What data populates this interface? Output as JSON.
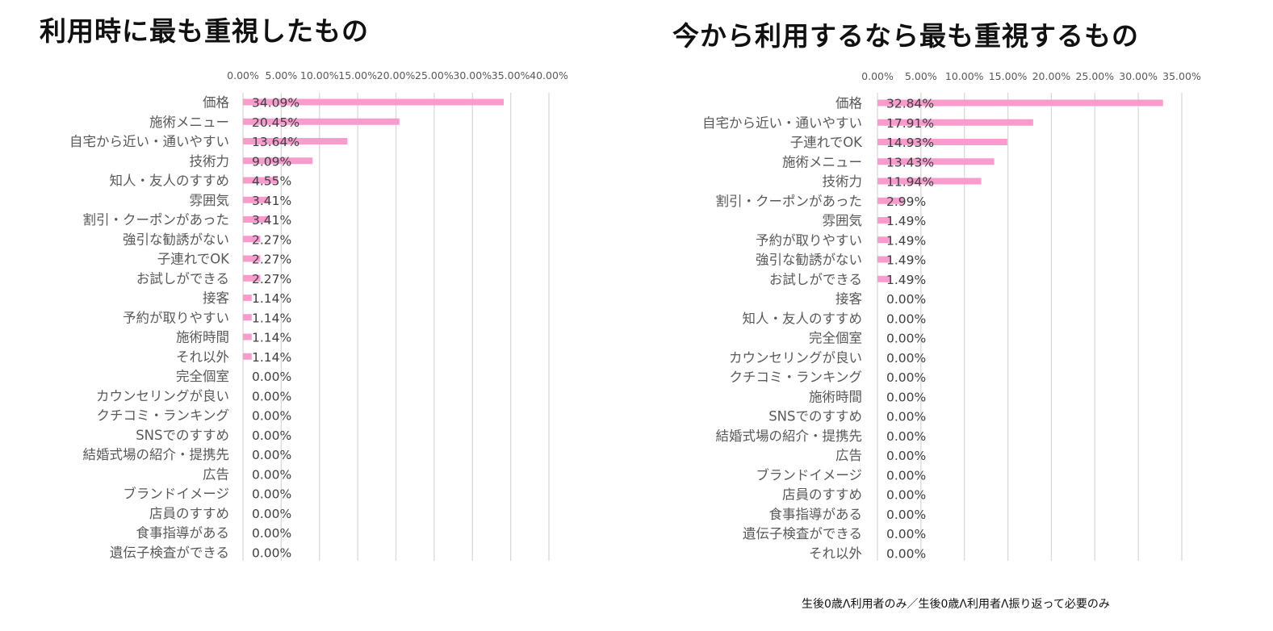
{
  "footnote": "生後0歳Λ利用者のみ／生後0歳Λ利用者Λ振り返って必要のみ",
  "colors": {
    "bar": "#f99ccd",
    "grid": "#d9d9d9",
    "axis_text": "#595959",
    "label_text": "#595959",
    "value_text": "#404040"
  },
  "chart_data": [
    {
      "type": "bar",
      "orientation": "horizontal",
      "title": "利用時に最も重視したもの",
      "xlim": [
        0,
        40
      ],
      "xticks": [
        "0.00%",
        "5.00%",
        "10.00%",
        "15.00%",
        "20.00%",
        "25.00%",
        "30.00%",
        "35.00%",
        "40.00%"
      ],
      "grid": true,
      "categories": [
        "価格",
        "施術メニュー",
        "自宅から近い・通いやすい",
        "技術力",
        "知人・友人のすすめ",
        "雰囲気",
        "割引・クーポンがあった",
        "強引な勧誘がない",
        "子連れでOK",
        "お試しができる",
        "接客",
        "予約が取りやすい",
        "施術時間",
        "それ以外",
        "完全個室",
        "カウンセリングが良い",
        "クチコミ・ランキング",
        "SNSでのすすめ",
        "結婚式場の紹介・提携先",
        "広告",
        "ブランドイメージ",
        "店員のすすめ",
        "食事指導がある",
        "遺伝子検査ができる"
      ],
      "values": [
        34.09,
        20.45,
        13.64,
        9.09,
        4.55,
        3.41,
        3.41,
        2.27,
        2.27,
        2.27,
        1.14,
        1.14,
        1.14,
        1.14,
        0,
        0,
        0,
        0,
        0,
        0,
        0,
        0,
        0,
        0
      ],
      "value_labels": [
        "34.09%",
        "20.45%",
        "13.64%",
        "9.09%",
        "4.55%",
        "3.41%",
        "3.41%",
        "2.27%",
        "2.27%",
        "2.27%",
        "1.14%",
        "1.14%",
        "1.14%",
        "1.14%",
        "0.00%",
        "0.00%",
        "0.00%",
        "0.00%",
        "0.00%",
        "0.00%",
        "0.00%",
        "0.00%",
        "0.00%",
        "0.00%"
      ]
    },
    {
      "type": "bar",
      "orientation": "horizontal",
      "title": "今から利用するなら最も重視するもの",
      "xlim": [
        0,
        35
      ],
      "xticks": [
        "0.00%",
        "5.00%",
        "10.00%",
        "15.00%",
        "20.00%",
        "25.00%",
        "30.00%",
        "35.00%"
      ],
      "grid": true,
      "categories": [
        "価格",
        "自宅から近い・通いやすい",
        "子連れでOK",
        "施術メニュー",
        "技術力",
        "割引・クーポンがあった",
        "雰囲気",
        "予約が取りやすい",
        "強引な勧誘がない",
        "お試しができる",
        "接客",
        "知人・友人のすすめ",
        "完全個室",
        "カウンセリングが良い",
        "クチコミ・ランキング",
        "施術時間",
        "SNSでのすすめ",
        "結婚式場の紹介・提携先",
        "広告",
        "ブランドイメージ",
        "店員のすすめ",
        "食事指導がある",
        "遺伝子検査ができる",
        "それ以外"
      ],
      "values": [
        32.84,
        17.91,
        14.93,
        13.43,
        11.94,
        2.99,
        1.49,
        1.49,
        1.49,
        1.49,
        0,
        0,
        0,
        0,
        0,
        0,
        0,
        0,
        0,
        0,
        0,
        0,
        0,
        0
      ],
      "value_labels": [
        "32.84%",
        "17.91%",
        "14.93%",
        "13.43%",
        "11.94%",
        "2.99%",
        "1.49%",
        "1.49%",
        "1.49%",
        "1.49%",
        "0.00%",
        "0.00%",
        "0.00%",
        "0.00%",
        "0.00%",
        "0.00%",
        "0.00%",
        "0.00%",
        "0.00%",
        "0.00%",
        "0.00%",
        "0.00%",
        "0.00%",
        "0.00%"
      ]
    }
  ]
}
